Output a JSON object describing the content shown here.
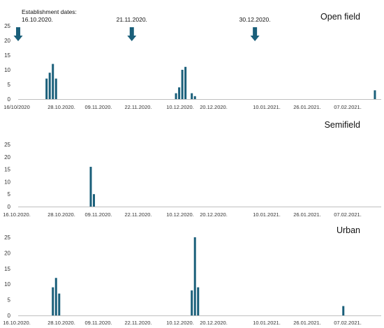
{
  "chart_data": [
    {
      "type": "bar",
      "title": "Open field",
      "x_axis": "date",
      "ylim": [
        0,
        25
      ],
      "yticks": [
        0,
        5,
        10,
        15,
        20,
        25
      ],
      "grid": false,
      "tick_labels": [
        "16/10/2020",
        "28.10.2020.",
        "09.11.2020.",
        "22.11.2020.",
        "10.12.2020.",
        "20.12.2020.",
        "10.01.2021.",
        "26.01.2021.",
        "07.02.2021."
      ],
      "bar_color": "#1a5f7a",
      "bars": [
        {
          "date": "2020-10-25",
          "value": 7
        },
        {
          "date": "2020-10-26",
          "value": 9
        },
        {
          "date": "2020-10-27",
          "value": 12
        },
        {
          "date": "2020-10-28",
          "value": 7
        },
        {
          "date": "2020-12-05",
          "value": 2
        },
        {
          "date": "2020-12-06",
          "value": 4
        },
        {
          "date": "2020-12-07",
          "value": 10
        },
        {
          "date": "2020-12-08",
          "value": 11
        },
        {
          "date": "2020-12-10",
          "value": 2
        },
        {
          "date": "2020-12-11",
          "value": 1
        },
        {
          "date": "2021-02-06",
          "value": 3
        }
      ],
      "annotation_heading": "Establishment dates:",
      "arrows": [
        {
          "label": "16.10.2020.",
          "date": "2020-10-16"
        },
        {
          "label": "21.11.2020.",
          "date": "2020-11-21"
        },
        {
          "label": "30.12.2020.",
          "date": "2020-12-30"
        }
      ]
    },
    {
      "type": "bar",
      "title": "Semifield",
      "x_axis": "date",
      "ylim": [
        0,
        25
      ],
      "yticks": [
        0,
        5,
        10,
        15,
        20,
        25
      ],
      "grid": false,
      "tick_labels": [
        "16.10.2020.",
        "28.10.2020.",
        "09.11.2020.",
        "22.11.2020.",
        "10.12.2020.",
        "20.12.2020.",
        "10.01.2021.",
        "26.01.2021.",
        "07.02.2021."
      ],
      "bar_color": "#1a5f7a",
      "bars": [
        {
          "date": "2020-11-08",
          "value": 16
        },
        {
          "date": "2020-11-09",
          "value": 5
        }
      ]
    },
    {
      "type": "bar",
      "title": "Urban",
      "x_axis": "date",
      "ylim": [
        0,
        25
      ],
      "yticks": [
        0,
        5,
        10,
        15,
        20,
        25
      ],
      "grid": false,
      "tick_labels": [
        "16.10.2020.",
        "28.10.2020.",
        "09.11.2020.",
        "22.11.2020.",
        "10.12.2020.",
        "20.12.2020.",
        "10.01.2021.",
        "26.01.2021.",
        "07.02.2021."
      ],
      "bar_color": "#1a5f7a",
      "bars": [
        {
          "date": "2020-10-27",
          "value": 9
        },
        {
          "date": "2020-10-28",
          "value": 12
        },
        {
          "date": "2020-10-29",
          "value": 7
        },
        {
          "date": "2020-12-10",
          "value": 8
        },
        {
          "date": "2020-12-11",
          "value": 25
        },
        {
          "date": "2020-12-12",
          "value": 9
        },
        {
          "date": "2021-01-27",
          "value": 3
        }
      ]
    }
  ]
}
